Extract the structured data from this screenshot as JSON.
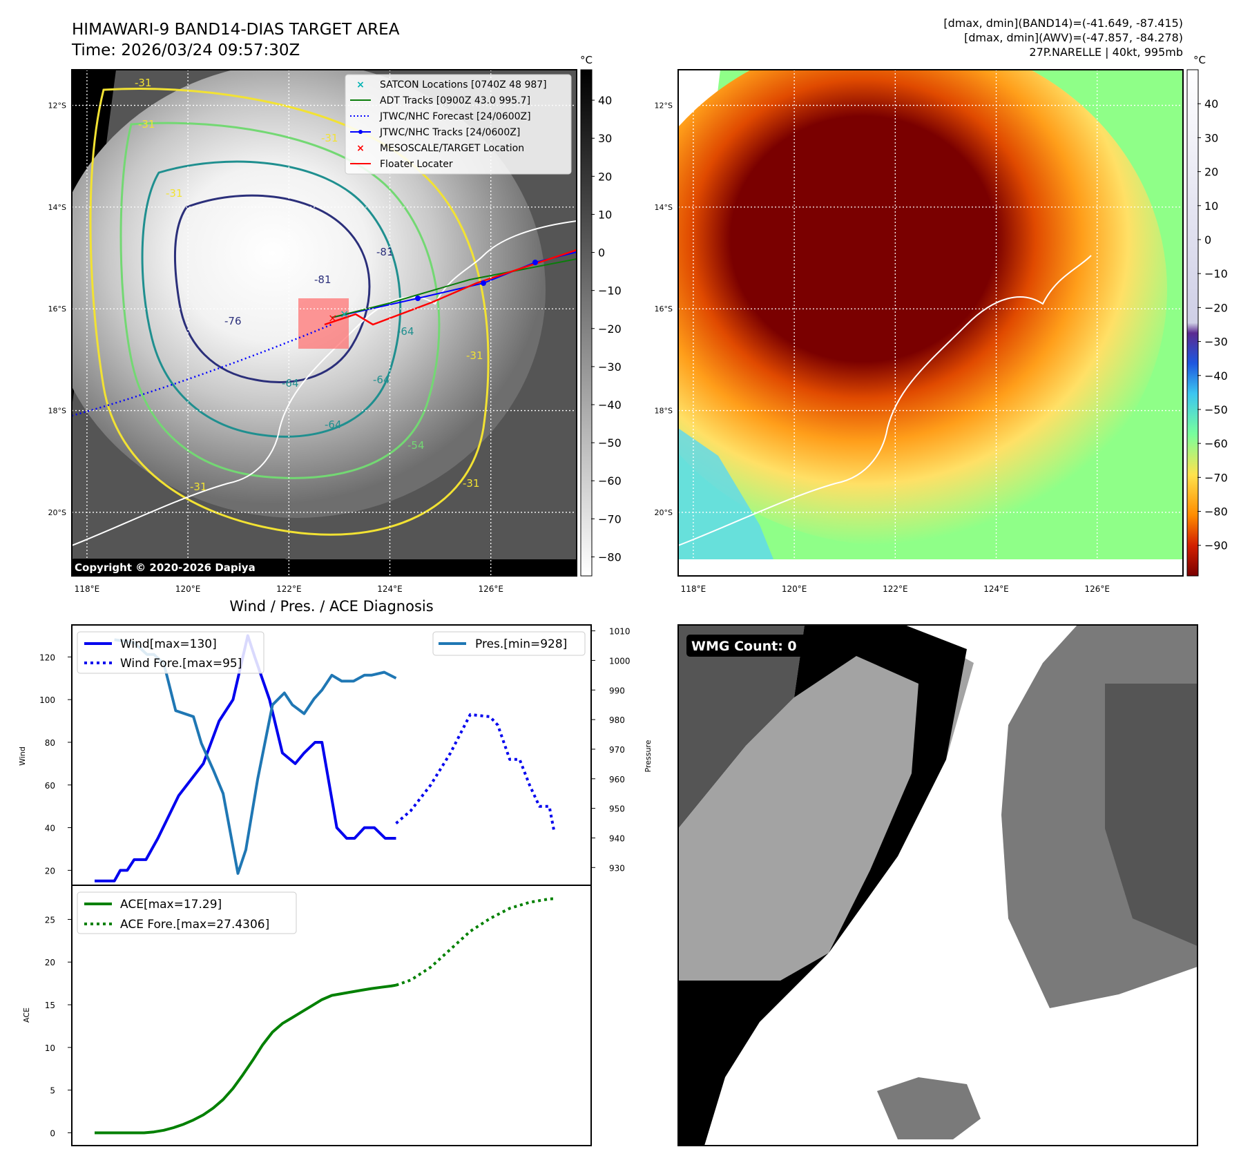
{
  "header": {
    "title_line1": "HIMAWARI-9 BAND14-DIAS TARGET AREA",
    "title_line2": "Time: 2026/03/24 09:57:30Z",
    "stats_line1": "[dmax, dmin](BAND14)=(-41.649, -87.415)",
    "stats_line2": "[dmax, dmin](AWV)=(-47.857, -84.278)",
    "stats_line3": "27P.NARELLE | 40kt, 995mb"
  },
  "map_axes": {
    "lat_labels": [
      "12°S",
      "14°S",
      "16°S",
      "18°S",
      "20°S"
    ],
    "lat_values": [
      -12,
      -14,
      -16,
      -18,
      -20
    ],
    "lon_labels": [
      "118°E",
      "120°E",
      "122°E",
      "124°E",
      "126°E"
    ],
    "lon_values": [
      118,
      120,
      122,
      124,
      126
    ],
    "lon_range": [
      117.7,
      127.7
    ],
    "lat_range": [
      -11.3,
      -21.25
    ]
  },
  "ir_panel": {
    "copyright": "Copyright © 2020-2026 Dapiya",
    "colorbar_unit": "°C",
    "colorbar_ticks": [
      "40",
      "30",
      "20",
      "10",
      "0",
      "−10",
      "−20",
      "−30",
      "−40",
      "−50",
      "−60",
      "−70",
      "−80"
    ],
    "colorbar_values": [
      40,
      30,
      20,
      10,
      0,
      -10,
      -20,
      -30,
      -40,
      -50,
      -60,
      -70,
      -80
    ],
    "colorbar_range": [
      48,
      -85
    ],
    "contour_labels": [
      "-31",
      "-31",
      "-31",
      "-31",
      "-31",
      "-31",
      "-31",
      "-54",
      "-64",
      "-64",
      "-64",
      "-64",
      "-76",
      "-81",
      "-81"
    ],
    "legend": [
      {
        "label": "SATCON Locations [0740Z 48 987]",
        "color": "#00b3b3"
      },
      {
        "label": "ADT Tracks [0900Z 43.0 995.7]",
        "color": "#0a7d0a"
      },
      {
        "label": "JTWC/NHC Forecast [24/0600Z]",
        "color": "#0000ff"
      },
      {
        "label": "JTWC/NHC Tracks [24/0600Z]",
        "color": "#0000ff"
      },
      {
        "label": "MESOSCALE/TARGET Location",
        "color": "#ff0000"
      },
      {
        "label": "Floater Locater",
        "color": "#ff0000"
      }
    ]
  },
  "awv_panel": {
    "colorbar_unit": "°C",
    "colorbar_ticks": [
      "40",
      "30",
      "20",
      "10",
      "0",
      "−10",
      "−20",
      "−30",
      "−40",
      "−50",
      "−60",
      "−70",
      "−80",
      "−90"
    ],
    "colorbar_values": [
      40,
      30,
      20,
      10,
      0,
      -10,
      -20,
      -30,
      -40,
      -50,
      -60,
      -70,
      -80,
      -90
    ],
    "colorbar_range": [
      50,
      -99
    ]
  },
  "wmg_panel": {
    "badge": "WMG Count: 0"
  },
  "chart_data": [
    {
      "type": "line",
      "title": "Wind / Pres. / ACE Diagnosis",
      "ylabel": "Wind",
      "ylabel_right": "Pressure",
      "x_range": [
        0,
        48
      ],
      "ylim": [
        13,
        135
      ],
      "ylim_right": [
        924,
        1012
      ],
      "y_ticks": [
        20,
        40,
        60,
        80,
        100,
        120
      ],
      "y_ticks_right": [
        930,
        940,
        950,
        960,
        970,
        980,
        990,
        1000,
        1010
      ],
      "series": [
        {
          "name": "Wind[max=130]",
          "color": "#0000ee",
          "style": "solid",
          "x": [
            0,
            2,
            2.6,
            3.3,
            4,
            5.2,
            6.4,
            8.5,
            11,
            12.6,
            14,
            15.5,
            16.2,
            17.7,
            19,
            20.3,
            21.2,
            22.3,
            23,
            24.5,
            25.5,
            26.3,
            27.3,
            28.3,
            29.4,
            30.5
          ],
          "y": [
            15,
            15,
            20,
            20,
            25,
            25,
            35,
            55,
            70,
            90,
            100,
            130,
            120,
            100,
            75,
            70,
            75,
            80,
            80,
            40,
            35,
            35,
            40,
            40,
            35,
            35
          ]
        },
        {
          "name": "Wind Fore.[max=95]",
          "color": "#0000ee",
          "style": "dotted",
          "x": [
            30.5,
            32,
            34,
            36,
            38,
            40,
            40.8,
            42,
            43,
            44,
            45,
            46,
            46.5
          ],
          "y": [
            42,
            48,
            60,
            75,
            93,
            92,
            88,
            72,
            72,
            60,
            50,
            50,
            38
          ]
        },
        {
          "name": "Pres.[min=928]",
          "color": "#1f77b4",
          "style": "solid",
          "axis": "right",
          "x": [
            2,
            4,
            5.3,
            6,
            7,
            8.2,
            10,
            10.8,
            12,
            13,
            14.5,
            15.3,
            16.5,
            18,
            19.2,
            20,
            21.2,
            22.2,
            23,
            24,
            25,
            26.2,
            27.3,
            28,
            29.3,
            30.5
          ],
          "y": [
            1007,
            1006,
            1002,
            1002,
            999,
            983,
            981,
            972,
            963,
            955,
            928,
            936,
            960,
            985,
            989,
            985,
            982,
            987,
            990,
            995,
            993,
            993,
            995,
            995,
            996,
            994
          ]
        }
      ]
    },
    {
      "type": "line",
      "ylabel": "ACE",
      "x_range": [
        0,
        48
      ],
      "ylim": [
        -1.5,
        29
      ],
      "y_ticks": [
        0,
        5,
        10,
        15,
        20,
        25
      ],
      "series": [
        {
          "name": "ACE[max=17.29]",
          "color": "#008000",
          "style": "solid",
          "x": [
            0,
            5,
            6,
            7,
            8,
            9,
            10,
            11,
            12,
            13,
            14,
            15,
            16,
            17,
            18,
            19,
            20,
            21,
            22,
            23,
            24,
            25,
            26,
            27,
            28,
            29,
            30,
            30.5
          ],
          "y": [
            0,
            0,
            0.1,
            0.3,
            0.6,
            1.0,
            1.5,
            2.1,
            2.9,
            3.9,
            5.2,
            6.8,
            8.5,
            10.3,
            11.8,
            12.8,
            13.5,
            14.2,
            14.9,
            15.6,
            16.1,
            16.3,
            16.5,
            16.7,
            16.9,
            17.05,
            17.2,
            17.29
          ]
        },
        {
          "name": "ACE Fore.[max=27.4306]",
          "color": "#008000",
          "style": "dotted",
          "x": [
            30.5,
            32,
            34,
            36,
            38,
            40,
            42,
            44,
            46,
            46.5
          ],
          "y": [
            17.29,
            17.9,
            19.4,
            21.5,
            23.6,
            25.1,
            26.3,
            27.0,
            27.4,
            27.43
          ]
        }
      ]
    }
  ]
}
